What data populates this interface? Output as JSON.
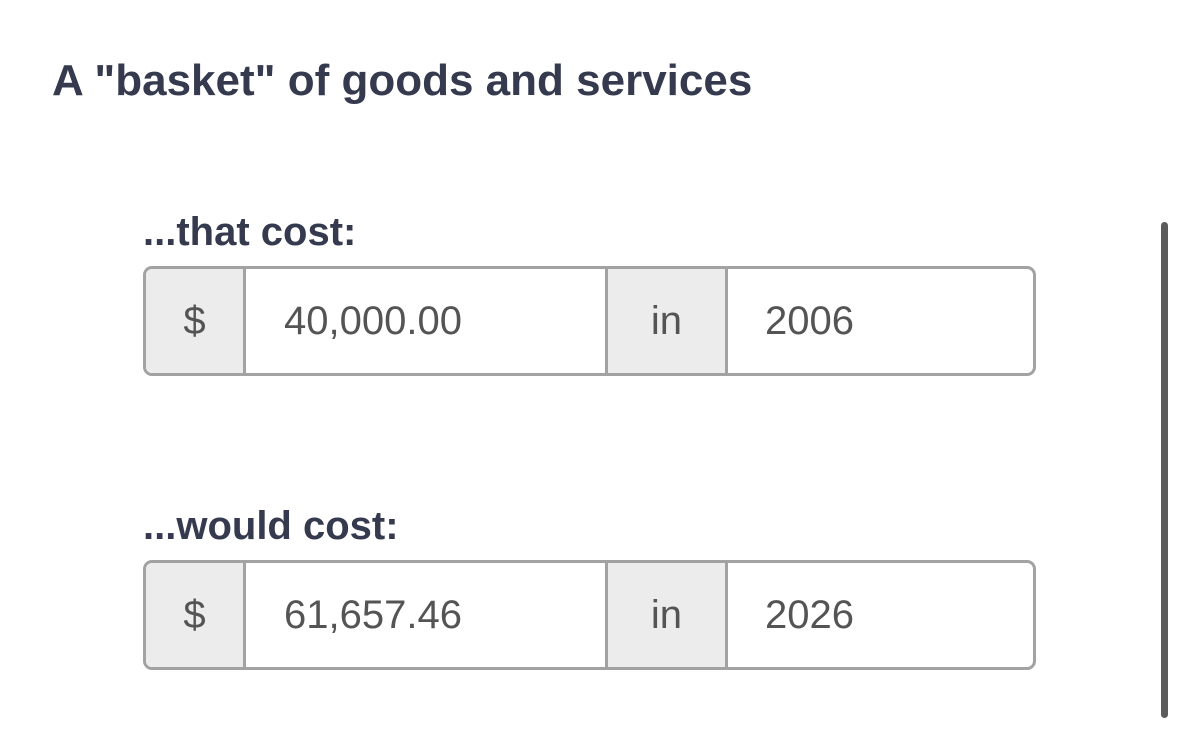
{
  "title": "A \"basket\" of goods and services",
  "rows": [
    {
      "label": "...that cost:",
      "currency": "$",
      "amount": "40,000.00",
      "connector": "in",
      "year": 2006
    },
    {
      "label": "...would cost:",
      "currency": "$",
      "amount": "61,657.46",
      "connector": "in",
      "year": 2026
    }
  ]
}
